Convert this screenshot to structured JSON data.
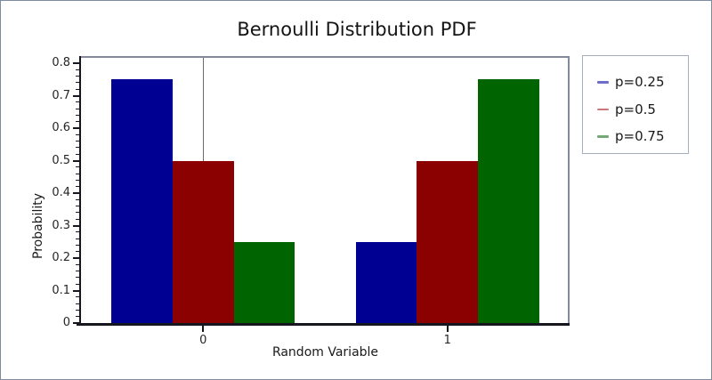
{
  "chart_data": {
    "type": "bar",
    "title": "Bernoulli Distribution PDF",
    "xlabel": "Random Variable",
    "ylabel": "Probability",
    "categories": [
      "0",
      "1"
    ],
    "series": [
      {
        "name": "p=0.25",
        "color": "#000092",
        "legend_color": "#6e6ec8",
        "values": [
          0.75,
          0.25
        ]
      },
      {
        "name": "p=0.5",
        "color": "#8b0000",
        "legend_color": "#c87878",
        "values": [
          0.5,
          0.5
        ]
      },
      {
        "name": "p=0.75",
        "color": "#006500",
        "legend_color": "#74a874",
        "values": [
          0.25,
          0.75
        ]
      }
    ],
    "y_ticks": [
      {
        "value": 0,
        "label": "0"
      },
      {
        "value": 0.1,
        "label": "0.1"
      },
      {
        "value": 0.2,
        "label": "0.2"
      },
      {
        "value": 0.3,
        "label": "0.3"
      },
      {
        "value": 0.4,
        "label": "0.4"
      },
      {
        "value": 0.5,
        "label": "0.5"
      },
      {
        "value": 0.6,
        "label": "0.6"
      },
      {
        "value": 0.7,
        "label": "0.7"
      },
      {
        "value": 0.8,
        "label": "0.8"
      }
    ],
    "minor_ticks_between_majors": 4,
    "ylim": [
      0,
      0.822
    ],
    "grid": "off",
    "annotations": {
      "vline_at_category": "0",
      "vline_color": "#6a6a6a"
    },
    "legend_position": "right",
    "bar_group_layout": "dodged, bar width 0.25 of category, tick centered under middle bar"
  },
  "colors": {
    "figure_border": "#7f8b9e",
    "plot_outline": "#828b9c",
    "axis_line": "#16161e",
    "legend_border": "#a3adbb",
    "background": "#ffffff"
  }
}
